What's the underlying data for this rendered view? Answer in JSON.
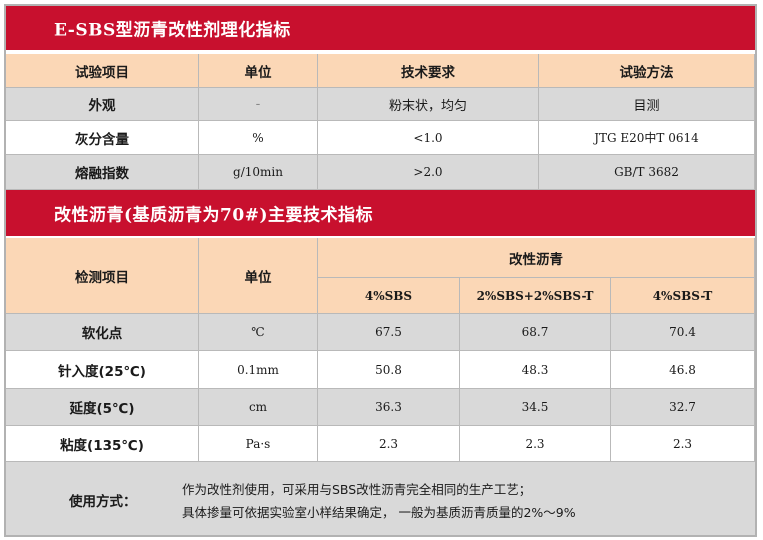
{
  "table1": {
    "title": "E-SBS型沥青改性剂理化指标",
    "headers": [
      "试验项目",
      "单位",
      "技术要求",
      "试验方法"
    ],
    "rows": [
      [
        "外观",
        "-",
        "粉末状，均匀",
        "目测"
      ],
      [
        "灰分含量",
        "%",
        "<1.0",
        "JTG E20中T 0614"
      ],
      [
        "熔融指数",
        "g/10min",
        ">2.0",
        "GB/T 3682"
      ]
    ]
  },
  "table2": {
    "title": "改性沥青(基质沥青为70#)主要技术指标",
    "header_item": "检测项目",
    "header_unit": "单位",
    "header_group": "改性沥青",
    "sub_headers": [
      "4%SBS",
      "2%SBS+2%SBS-T",
      "4%SBS-T"
    ],
    "rows": [
      [
        "软化点",
        "℃",
        "67.5",
        "68.7",
        "70.4"
      ],
      [
        "针入度(25℃)",
        "0.1mm",
        "50.8",
        "48.3",
        "46.8"
      ],
      [
        "延度(5℃)",
        "cm",
        "36.3",
        "34.5",
        "32.7"
      ],
      [
        "粘度(135℃)",
        "Pa·s",
        "2.3",
        "2.3",
        "2.3"
      ]
    ]
  },
  "usage": {
    "label": "使用方式：",
    "line1": "作为改性剂使用，可采用与SBS改性沥青完全相同的生产工艺；",
    "line2": "具体掺量可依据实验室小样结果确定，  一般为基质沥青质量的2%～9%"
  }
}
